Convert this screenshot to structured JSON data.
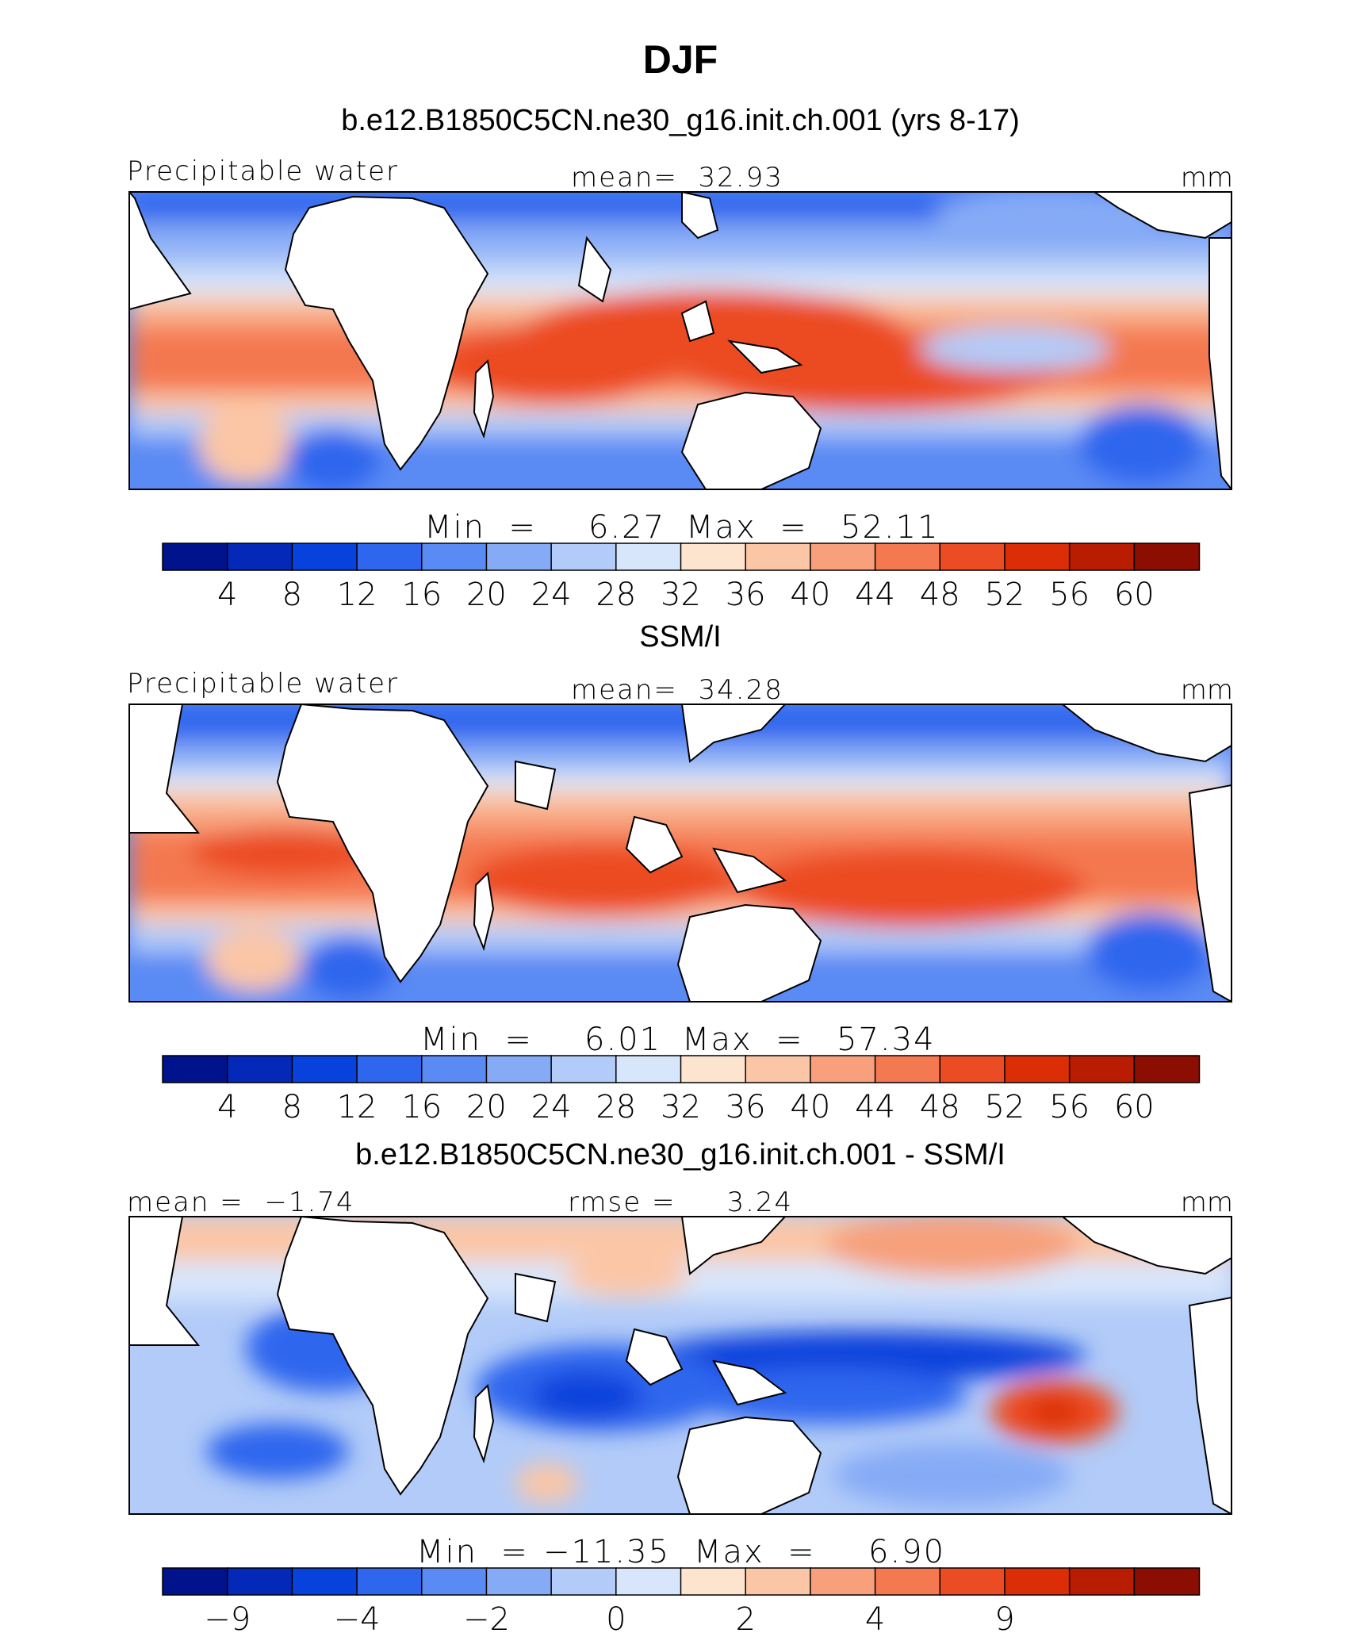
{
  "page_title": "DJF",
  "chart_data": [
    {
      "type": "heatmap",
      "title": "b.e12.B1850C5CN.ne30_g16.init.ch.001 (yrs 8-17)",
      "variable": "Precipitable water",
      "units": "mm",
      "mean_text": "mean=  32.93",
      "minmax": {
        "min_label": "Min  =",
        "min": "6.27",
        "max_label": "Max  =",
        "max": "52.11"
      },
      "colorbar": {
        "colors": [
          "#00138c",
          "#0428b8",
          "#0842dc",
          "#2f66ee",
          "#5a8af4",
          "#86abf6",
          "#b2cbf8",
          "#d8e6fb",
          "#fde4cf",
          "#fbc6a6",
          "#f7a07b",
          "#f47850",
          "#ec4c24",
          "#dc2e06",
          "#b81d02",
          "#8c0d02"
        ],
        "ticks": [
          "4",
          "8",
          "12",
          "16",
          "20",
          "24",
          "28",
          "32",
          "36",
          "40",
          "44",
          "48",
          "52",
          "56",
          "60"
        ]
      }
    },
    {
      "type": "heatmap",
      "title": "SSM/I",
      "variable": "Precipitable water",
      "units": "mm",
      "mean_text": "mean=  34.28",
      "minmax": {
        "min_label": "Min  =",
        "min": "6.01",
        "max_label": "Max  =",
        "max": "57.34"
      },
      "colorbar": {
        "colors": [
          "#00138c",
          "#0428b8",
          "#0842dc",
          "#2f66ee",
          "#5a8af4",
          "#86abf6",
          "#b2cbf8",
          "#d8e6fb",
          "#fde4cf",
          "#fbc6a6",
          "#f7a07b",
          "#f47850",
          "#ec4c24",
          "#dc2e06",
          "#b81d02",
          "#8c0d02"
        ],
        "ticks": [
          "4",
          "8",
          "12",
          "16",
          "20",
          "24",
          "28",
          "32",
          "36",
          "40",
          "44",
          "48",
          "52",
          "56",
          "60"
        ]
      }
    },
    {
      "type": "heatmap",
      "title": "b.e12.B1850C5CN.ne30_g16.init.ch.001 - SSM/I",
      "variable": "",
      "units": "mm",
      "mean_text": "mean =  −1.74",
      "rmse_text": "rmse =     3.24",
      "minmax": {
        "min_label": "Min  =",
        "min": "−11.35",
        "max_label": "Max  =",
        "max": "6.90"
      },
      "colorbar": {
        "colors": [
          "#00138c",
          "#0428b8",
          "#0842dc",
          "#2f66ee",
          "#5a8af4",
          "#86abf6",
          "#b2cbf8",
          "#d8e6fb",
          "#fde4cf",
          "#fbc6a6",
          "#f7a07b",
          "#f47850",
          "#ec4c24",
          "#dc2e06",
          "#b81d02",
          "#8c0d02"
        ],
        "ticks": [
          "−9",
          "",
          "−4",
          "",
          "−2",
          "",
          "0",
          "",
          "2",
          "",
          "4",
          "",
          "9",
          "",
          ""
        ]
      }
    }
  ]
}
